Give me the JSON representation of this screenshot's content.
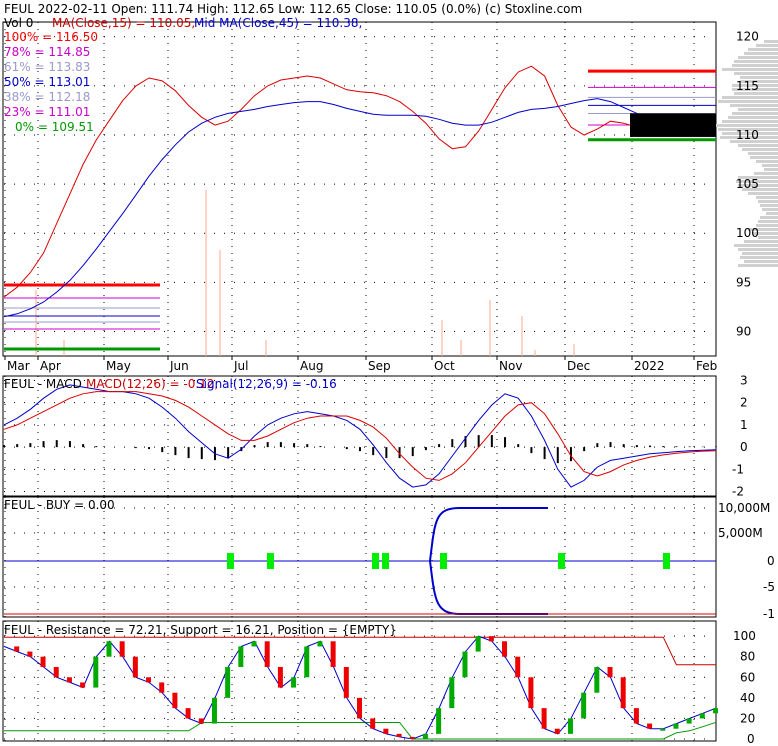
{
  "header": {
    "line1": "FEUL  2022-02-11 Open: 111.74  High: 112.65  Low: 112.65  Close: 110.05 (0.0%)  (c) Stoxline.com",
    "vol": "Vol 0",
    "ma15": "MA(Close,15) = 110.05,",
    "ma45": "Mid MA(Close,45) = 110.38,"
  },
  "fib_levels": [
    {
      "label": "100% = 116.50",
      "color": "#ff0000"
    },
    {
      "label": "78% = 114.85",
      "color": "#cc00cc"
    },
    {
      "label": "61% = 113.83",
      "color": "#9999cc"
    },
    {
      "label": "50% = 113.01",
      "color": "#0000cc"
    },
    {
      "label": "38% = 112.18",
      "color": "#9999cc"
    },
    {
      "label": "23% = 111.01",
      "color": "#cc00cc"
    },
    {
      "label": "0% = 109.51",
      "color": "#009900"
    }
  ],
  "macd_panel": {
    "title": "FEUL - MACD",
    "macd": "MACD(12,26) = -0.12,",
    "signal": "Signal(12,26,9) = -0.16"
  },
  "buy_panel": {
    "title": "FEUL - BUY = 0.00"
  },
  "sr_panel": {
    "title": "FEUL - Resistance = 72.21, Support = 16.21, Position = {EMPTY}"
  },
  "chart_data": {
    "type": "line",
    "x_tick_labels": [
      "Mar",
      "Apr",
      "May",
      "Jun",
      "Jul",
      "Aug",
      "Sep",
      "Oct",
      "Nov",
      "Dec",
      "2022",
      "Feb"
    ],
    "panels": [
      {
        "name": "price",
        "y_ticks": [
          90,
          95,
          100,
          105,
          110,
          115,
          120
        ],
        "ylim": [
          87.5,
          121.5
        ],
        "ma15_close": [
          93.5,
          94.5,
          96.0,
          98.0,
          101.0,
          104.0,
          107.0,
          109.5,
          111.5,
          113.5,
          115.0,
          115.8,
          115.5,
          114.5,
          113.0,
          111.8,
          111.0,
          111.4,
          112.6,
          114.0,
          115.0,
          115.6,
          115.8,
          116.0,
          115.8,
          115.2,
          114.6,
          114.4,
          114.3,
          114.0,
          113.4,
          112.4,
          111.2,
          109.6,
          108.6,
          108.8,
          110.4,
          112.6,
          114.8,
          116.4,
          117.0,
          116.0,
          113.0,
          110.8,
          110.0,
          110.6,
          111.4,
          111.2,
          110.8,
          110.5,
          110.4,
          110.3,
          110.2,
          110.1,
          110.05
        ],
        "ma45_close": [
          91.5,
          91.8,
          92.3,
          93.0,
          94.0,
          95.2,
          96.7,
          98.4,
          100.2,
          102.0,
          103.9,
          105.8,
          107.5,
          109.0,
          110.3,
          111.2,
          111.8,
          112.2,
          112.4,
          112.6,
          112.9,
          113.1,
          113.3,
          113.4,
          113.4,
          113.1,
          112.7,
          112.4,
          112.1,
          112.0,
          112.0,
          112.0,
          111.9,
          111.6,
          111.2,
          111.0,
          111.0,
          111.3,
          111.8,
          112.3,
          112.6,
          112.7,
          112.9,
          113.2,
          113.5,
          113.7,
          113.4,
          112.8,
          112.2,
          111.6,
          111.0,
          110.7,
          110.5,
          110.4,
          110.38
        ],
        "fib_lines": [
          116.5,
          114.85,
          113.83,
          113.01,
          112.18,
          111.01,
          109.51
        ]
      },
      {
        "name": "macd",
        "y_ticks": [
          3,
          2,
          1,
          0,
          -1,
          -2
        ],
        "ylim": [
          -2.2,
          3.2
        ],
        "macd": [
          1.0,
          1.3,
          1.7,
          2.2,
          2.6,
          2.8,
          2.7,
          2.6,
          2.5,
          2.5,
          2.4,
          2.2,
          1.8,
          1.3,
          0.7,
          0.2,
          -0.3,
          -0.5,
          -0.1,
          0.5,
          1.0,
          1.3,
          1.5,
          1.6,
          1.5,
          1.4,
          1.2,
          0.8,
          0.1,
          -0.7,
          -1.4,
          -1.8,
          -1.7,
          -1.2,
          -0.4,
          0.4,
          1.2,
          1.9,
          2.4,
          2.2,
          1.4,
          0.3,
          -1.0,
          -1.8,
          -1.5,
          -0.9,
          -0.6,
          -0.5,
          -0.4,
          -0.3,
          -0.25,
          -0.2,
          -0.16,
          -0.14,
          -0.12
        ],
        "signal": [
          0.8,
          1.0,
          1.3,
          1.6,
          1.9,
          2.2,
          2.4,
          2.5,
          2.5,
          2.5,
          2.5,
          2.4,
          2.3,
          2.1,
          1.8,
          1.4,
          1.0,
          0.6,
          0.3,
          0.3,
          0.5,
          0.8,
          1.1,
          1.3,
          1.4,
          1.4,
          1.4,
          1.2,
          0.9,
          0.4,
          -0.3,
          -0.9,
          -1.4,
          -1.5,
          -1.2,
          -0.7,
          0.0,
          0.7,
          1.4,
          1.9,
          2.0,
          1.5,
          0.6,
          -0.4,
          -1.1,
          -1.3,
          -1.1,
          -0.8,
          -0.6,
          -0.45,
          -0.35,
          -0.28,
          -0.22,
          -0.18,
          -0.16
        ]
      },
      {
        "name": "buy",
        "y_tick_labels": [
          "10,000M",
          "5,000M",
          "0",
          "-5",
          "-1"
        ],
        "buy_signal_months": [
          "Jul",
          "Aug",
          "Sep",
          "Sep",
          "Oct",
          "Dec",
          "Jan"
        ]
      },
      {
        "name": "resistance_support",
        "y_ticks": [
          100,
          80,
          60,
          40,
          20,
          0
        ],
        "ylim": [
          0,
          105
        ],
        "resistance": [
          99,
          99,
          99,
          99,
          99,
          99,
          99,
          99,
          99,
          99,
          99,
          99,
          99,
          99,
          99,
          99,
          99,
          99,
          99,
          99,
          99,
          99,
          99,
          99,
          99,
          99,
          99,
          99,
          99,
          99,
          99,
          99,
          99,
          99,
          99,
          99,
          99,
          99,
          99,
          99,
          99,
          99,
          99,
          99,
          99,
          99,
          99,
          99,
          99,
          99,
          99,
          72.21,
          72.21,
          72.21,
          72.21
        ],
        "support": [
          8,
          8,
          8,
          8,
          8,
          8,
          8,
          8,
          8,
          8,
          8,
          8,
          8,
          8,
          8,
          16,
          16,
          16,
          16,
          16,
          16,
          16,
          16,
          16,
          16,
          16,
          16,
          16,
          16,
          16,
          16,
          0,
          0,
          0,
          0,
          0,
          0,
          0,
          0,
          0,
          0,
          0,
          0,
          0,
          0,
          0,
          0,
          0,
          0,
          0,
          0,
          6,
          8,
          12,
          16.21
        ],
        "position": [
          90,
          85,
          80,
          70,
          60,
          55,
          50,
          80,
          95,
          80,
          60,
          55,
          45,
          30,
          20,
          15,
          40,
          70,
          90,
          95,
          70,
          50,
          60,
          90,
          95,
          70,
          40,
          20,
          10,
          5,
          2,
          0,
          5,
          30,
          60,
          85,
          100,
          95,
          80,
          60,
          30,
          10,
          5,
          20,
          45,
          70,
          60,
          30,
          15,
          10,
          10,
          15,
          20,
          25,
          30
        ]
      }
    ]
  }
}
